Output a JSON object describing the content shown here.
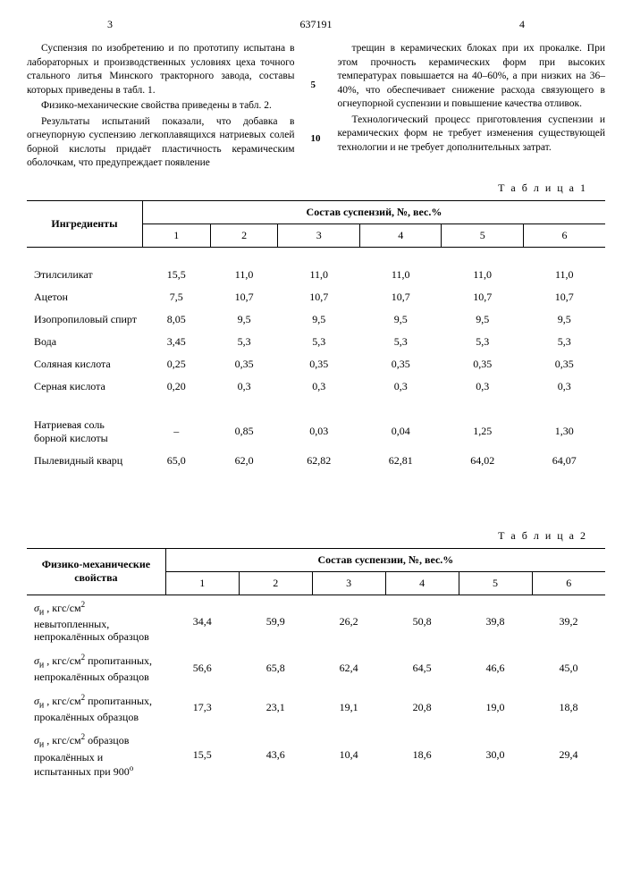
{
  "header": {
    "page_left": "3",
    "doc_number": "637191",
    "page_right": "4"
  },
  "columns": {
    "left": {
      "p1": "Суспензия по изобретению и по прототипу испытана в лабораторных и производственных условиях цеха точного стального литья Минского тракторного завода, составы которых приведены в табл. 1.",
      "p2": "Физико-механические свойства приведены в табл. 2.",
      "p3": "Результаты испытаний показали, что добавка в огнеупорную суспензию легкоплавящихся натриевых солей борной кислоты придаёт пластичность керамическим оболочкам, что предупреждает появление"
    },
    "right": {
      "p1": "трещин в керамических блоках при их прокалке. При этом прочность керамических форм при высоких температурах повышается на 40–60%, а при низких на 36–40%, что обеспечивает снижение расхода связующего в огнеупорной суспензии и повышение качества отливок.",
      "p2": "Технологический процесс приготовления суспензии и керамических форм не требует изменения существующей технологии и не требует дополнительных затрат."
    },
    "markers": {
      "m1": "5",
      "m2": "10"
    }
  },
  "table1": {
    "label": "Т а б л и ц а 1",
    "th_ingredients": "Ингредиенты",
    "th_composition": "Состав суспензий, №, вес.%",
    "cols": [
      "1",
      "2",
      "3",
      "4",
      "5",
      "6"
    ],
    "rows": [
      {
        "name": "Этилсиликат",
        "v": [
          "15,5",
          "11,0",
          "11,0",
          "11,0",
          "11,0",
          "11,0"
        ]
      },
      {
        "name": "Ацетон",
        "v": [
          "7,5",
          "10,7",
          "10,7",
          "10,7",
          "10,7",
          "10,7"
        ]
      },
      {
        "name": "Изопропиловый спирт",
        "v": [
          "8,05",
          "9,5",
          "9,5",
          "9,5",
          "9,5",
          "9,5"
        ]
      },
      {
        "name": "Вода",
        "v": [
          "3,45",
          "5,3",
          "5,3",
          "5,3",
          "5,3",
          "5,3"
        ]
      },
      {
        "name": "Соляная кислота",
        "v": [
          "0,25",
          "0,35",
          "0,35",
          "0,35",
          "0,35",
          "0,35"
        ]
      },
      {
        "name": "Серная кислота",
        "v": [
          "0,20",
          "0,3",
          "0,3",
          "0,3",
          "0,3",
          "0,3"
        ]
      },
      {
        "name": "Натриевая соль борной кислоты",
        "v": [
          "–",
          "0,85",
          "0,03",
          "0,04",
          "1,25",
          "1,30"
        ]
      },
      {
        "name": "Пылевидный кварц",
        "v": [
          "65,0",
          "62,0",
          "62,82",
          "62,81",
          "64,02",
          "64,07"
        ]
      }
    ]
  },
  "table2": {
    "label": "Т а б л и ц а 2",
    "th_properties": "Физико-механические свойства",
    "th_composition": "Состав суспензии, №, вес.%",
    "cols": [
      "1",
      "2",
      "3",
      "4",
      "5",
      "6"
    ],
    "rows": [
      {
        "name": "σи , кгс/см² невытопленных, непрокалённых образцов",
        "v": [
          "34,4",
          "59,9",
          "26,2",
          "50,8",
          "39,8",
          "39,2"
        ]
      },
      {
        "name": "σи , кгс/см² пропитанных, непрокалённых образцов",
        "v": [
          "56,6",
          "65,8",
          "62,4",
          "64,5",
          "46,6",
          "45,0"
        ]
      },
      {
        "name": "σи , кгс/см² пропитанных, прокалённых образцов",
        "v": [
          "17,3",
          "23,1",
          "19,1",
          "20,8",
          "19,0",
          "18,8"
        ]
      },
      {
        "name": "σи , кгс/см² образцов прокалённых и испытанных при 900°",
        "v": [
          "15,5",
          "43,6",
          "10,4",
          "18,6",
          "30,0",
          "29,4"
        ]
      }
    ]
  }
}
